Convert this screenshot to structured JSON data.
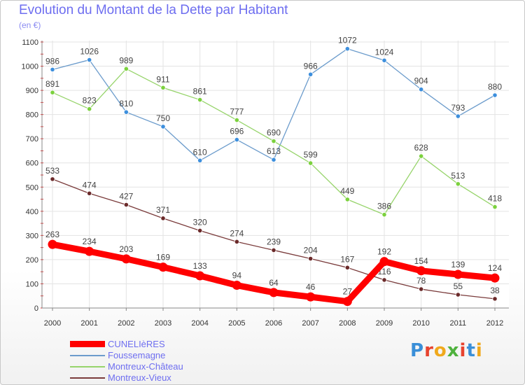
{
  "title": "Evolution du Montant de la Dette par Habitant",
  "subtitle": "(en €)",
  "logo": {
    "text": "Proxiti",
    "colors": [
      "#3a8fd8",
      "#e7432f",
      "#f0a91c",
      "#4fb23e",
      "#e7432f",
      "#3a8fd8",
      "#f0a91c"
    ]
  },
  "chart_data": {
    "type": "line",
    "x": [
      "2000",
      "2001",
      "2002",
      "2003",
      "2004",
      "2005",
      "2006",
      "2007",
      "2008",
      "2009",
      "2010",
      "2011",
      "2012"
    ],
    "ylim": [
      0,
      1100
    ],
    "yticks": [
      0,
      100,
      200,
      300,
      400,
      500,
      600,
      700,
      800,
      900,
      1000,
      1100
    ],
    "grid": true,
    "legend_position": "bottom-left",
    "series": [
      {
        "name": "Foussemagne",
        "color": "#6c9ccc",
        "marker": "#3d8fdd",
        "width": 1.3,
        "values": [
          986,
          1026,
          810,
          750,
          610,
          696,
          613,
          966,
          1072,
          1024,
          904,
          793,
          880
        ]
      },
      {
        "name": "Montreux-Château",
        "color": "#97d46b",
        "marker": "#7bd13d",
        "width": 1.3,
        "values": [
          891,
          823,
          989,
          911,
          861,
          777,
          690,
          599,
          449,
          386,
          628,
          513,
          418
        ]
      },
      {
        "name": "Montreux-Vieux",
        "color": "#7a3b3b",
        "marker": "#6b2a2a",
        "width": 1.3,
        "values": [
          533,
          474,
          427,
          371,
          320,
          274,
          239,
          204,
          167,
          116,
          78,
          55,
          38
        ]
      },
      {
        "name": "CUNELIèRES",
        "color": "#ff0000",
        "marker": "#ff0000",
        "width": 9,
        "values": [
          263,
          234,
          203,
          169,
          133,
          94,
          64,
          46,
          27,
          192,
          154,
          139,
          124
        ]
      }
    ],
    "legend": [
      "CUNELIèRES",
      "Foussemagne",
      "Montreux-Château",
      "Montreux-Vieux"
    ]
  }
}
